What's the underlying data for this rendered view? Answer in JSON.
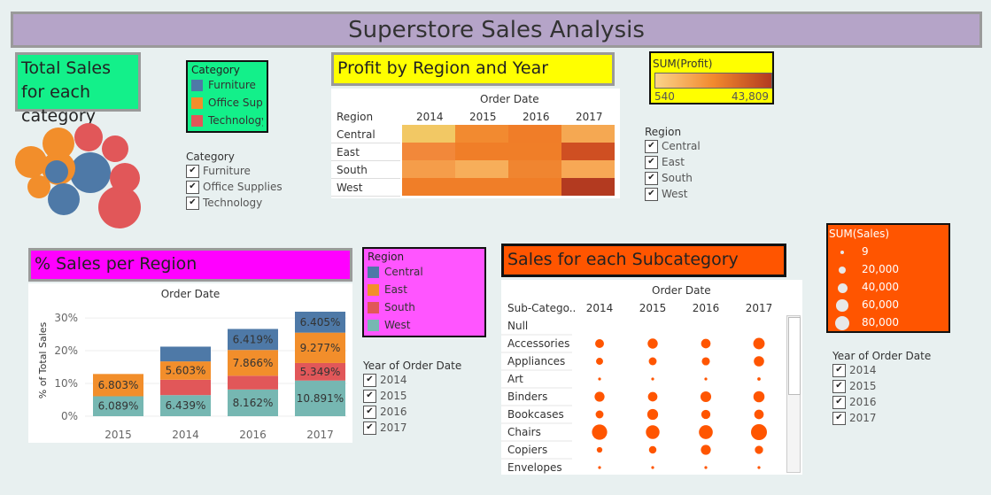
{
  "page_title": "Superstore Sales Analysis",
  "colors": {
    "furniture": "#4e79a7",
    "office": "#f28e2b",
    "technology": "#e15759",
    "west": "#76b7b2"
  },
  "total_sales": {
    "title": "Total Sales for each category"
  },
  "category_legend": {
    "title": "Category",
    "items": [
      {
        "label": "Furniture",
        "color": "#4e79a7"
      },
      {
        "label": "Office Sup..",
        "color": "#f28e2b"
      },
      {
        "label": "Technology",
        "color": "#e15759"
      }
    ]
  },
  "category_filter": {
    "title": "Category",
    "items": [
      "Furniture",
      "Office Supplies",
      "Technology"
    ]
  },
  "profit_heatmap": {
    "title": "Profit by Region and Year",
    "col_header": "Order Date",
    "row_header": "Region",
    "years": [
      "2014",
      "2015",
      "2016",
      "2017"
    ],
    "regions": [
      "Central",
      "East",
      "South",
      "West"
    ],
    "colors": [
      [
        "#f2c864",
        "#f28a30",
        "#f07d28",
        "#f5a852"
      ],
      [
        "#f2883a",
        "#f07e28",
        "#f07e28",
        "#cf4f22"
      ],
      [
        "#f59d4a",
        "#f7ae5a",
        "#f08530",
        "#f7a855"
      ],
      [
        "#f07e28",
        "#f07e28",
        "#f07e28",
        "#b33a20"
      ]
    ]
  },
  "profit_legend": {
    "title": "SUM(Profit)",
    "min": "540",
    "max": "43,809"
  },
  "region_filter": {
    "title": "Region",
    "items": [
      "Central",
      "East",
      "South",
      "West"
    ]
  },
  "sales_region": {
    "title": "% Sales per Region",
    "col_header": "Order Date",
    "ylabel": "% of Total Sales",
    "yticks": [
      "30%",
      "20%",
      "10%",
      "0%"
    ]
  },
  "region_legend": {
    "title": "Region",
    "items": [
      {
        "label": "Central",
        "color": "#4e79a7"
      },
      {
        "label": "East",
        "color": "#f28e2b"
      },
      {
        "label": "South",
        "color": "#e15759"
      },
      {
        "label": "West",
        "color": "#76b7b2"
      }
    ]
  },
  "year_filter_1": {
    "title": "Year of Order Date",
    "items": [
      "2014",
      "2015",
      "2016",
      "2017"
    ]
  },
  "subcat": {
    "title": "Sales for each Subcategory",
    "col_header": "Order Date",
    "row_header": "Sub-Catego..",
    "years": [
      "2014",
      "2015",
      "2016",
      "2017"
    ],
    "rows": [
      "Null",
      "Accessories",
      "Appliances",
      "Art",
      "Binders",
      "Bookcases",
      "Chairs",
      "Copiers",
      "Envelopes"
    ]
  },
  "sales_legend": {
    "title": "SUM(Sales)",
    "items": [
      "9",
      "20,000",
      "40,000",
      "60,000",
      "80,000"
    ]
  },
  "year_filter_2": {
    "title": "Year of Order Date",
    "items": [
      "2014",
      "2015",
      "2016",
      "2017"
    ]
  },
  "chart_data": [
    {
      "type": "scatter",
      "title": "Total Sales for each category",
      "series": [
        {
          "name": "Furniture",
          "values": [
            1,
            1,
            1,
            1,
            1
          ]
        },
        {
          "name": "Office Supplies",
          "values": [
            1,
            1,
            1
          ]
        },
        {
          "name": "Technology",
          "values": [
            1,
            1,
            1,
            1,
            1
          ]
        }
      ]
    },
    {
      "type": "heatmap",
      "title": "Profit by Region and Year",
      "x": [
        "2014",
        "2015",
        "2016",
        "2017"
      ],
      "y": [
        "Central",
        "East",
        "South",
        "West"
      ],
      "legend_range": [
        540,
        43809
      ]
    },
    {
      "type": "bar",
      "title": "% Sales per Region",
      "categories": [
        "2015",
        "2014",
        "2016",
        "2017"
      ],
      "ylabel": "% of Total Sales",
      "ylim": [
        0,
        33
      ],
      "series": [
        {
          "name": "West",
          "values": [
            6.089,
            6.439,
            8.162,
            10.891
          ],
          "labels": [
            "6.089%",
            "6.439%",
            "8.162%",
            "10.891%"
          ]
        },
        {
          "name": "South",
          "values": [
            0,
            4.7,
            4.2,
            5.349
          ],
          "labels": [
            "",
            "",
            "",
            "5.349%"
          ]
        },
        {
          "name": "East",
          "values": [
            6.803,
            5.603,
            7.866,
            9.277
          ],
          "labels": [
            "6.803%",
            "5.603%",
            "7.866%",
            "9.277%"
          ]
        },
        {
          "name": "Central",
          "values": [
            0,
            4.5,
            6.419,
            6.405
          ],
          "labels": [
            "",
            "",
            "6.419%",
            "6.405%"
          ]
        }
      ]
    },
    {
      "type": "scatter",
      "title": "Sales for each Subcategory",
      "x": [
        "2014",
        "2015",
        "2016",
        "2017"
      ],
      "y": [
        "Null",
        "Accessories",
        "Appliances",
        "Art",
        "Binders",
        "Bookcases",
        "Chairs",
        "Copiers",
        "Envelopes"
      ],
      "values": [
        [
          0,
          0,
          0,
          0
        ],
        [
          25000,
          33000,
          29000,
          42000
        ],
        [
          16000,
          20000,
          21000,
          34000
        ],
        [
          2000,
          2000,
          2000,
          3500
        ],
        [
          32000,
          29000,
          37000,
          40000
        ],
        [
          20000,
          38000,
          27000,
          29000
        ],
        [
          75000,
          60000,
          62000,
          82000
        ],
        [
          10000,
          18000,
          32000,
          22000
        ],
        [
          2000,
          2500,
          2000,
          2500
        ]
      ]
    }
  ]
}
